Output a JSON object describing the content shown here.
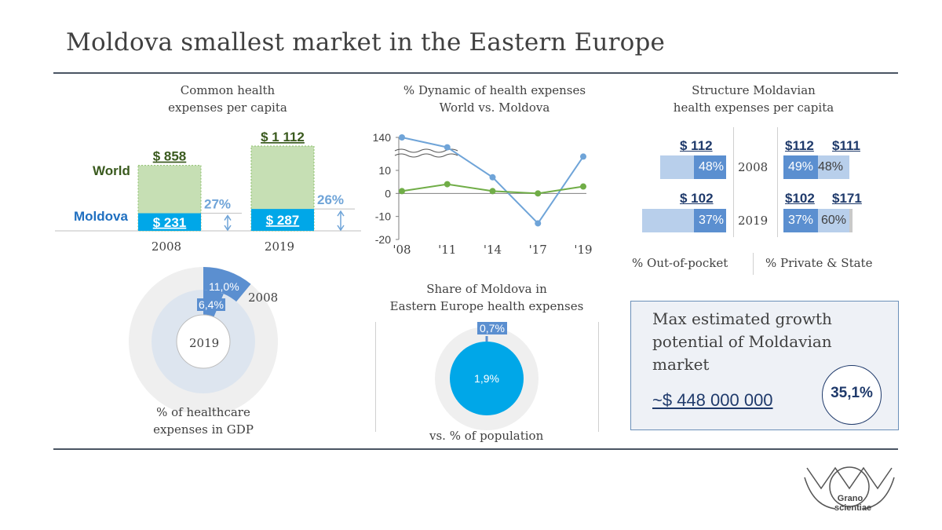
{
  "page": {
    "title": "Moldova smallest market in the Eastern Europe"
  },
  "colors": {
    "world_green": "#c6dfb4",
    "moldova_blue": "#00a7e8",
    "dark_green": "#3a5a1e",
    "dark_blue_text": "#1f3a6b",
    "line_blue": "#6fa4d8",
    "line_green": "#70ad47",
    "gdp_blue": "#5b8fd0",
    "light_grey": "#efefef"
  },
  "per_capita": {
    "title_line1": "Common health",
    "title_line2": "expenses per capita",
    "world_label": "World",
    "moldova_label": "Moldova",
    "chart_data": {
      "type": "bar",
      "categories": [
        "2008",
        "2019"
      ],
      "series": [
        {
          "name": "World",
          "values": [
            858,
            1112
          ],
          "labels": [
            "$ 858",
            "$ 1 112"
          ]
        },
        {
          "name": "Moldova",
          "values": [
            231,
            287
          ],
          "labels": [
            "$ 231",
            "$ 287"
          ]
        }
      ],
      "share_labels": [
        "27%",
        "26%"
      ]
    }
  },
  "dynamic": {
    "title_line1": "% Dynamic of health expenses",
    "title_line2": "World vs. Moldova",
    "chart_data": {
      "type": "line",
      "x": [
        "'08",
        "'11",
        "'14",
        "'17",
        "'19"
      ],
      "yticks": [
        "140",
        "10",
        "0",
        "-10",
        "-20"
      ],
      "ylim": [
        -20,
        140
      ],
      "axis_break": true,
      "series": [
        {
          "values": [
            140,
            119,
            7,
            -13,
            16
          ]
        },
        {
          "values": [
            1,
            4,
            1,
            0,
            3
          ]
        }
      ]
    }
  },
  "structure": {
    "title_line1": "Structure Moldavian",
    "title_line2": "health expenses per capita",
    "rows": [
      {
        "year": "2008",
        "oop_value": "$ 112",
        "oop_pct": "48%",
        "oop_share": 0.48,
        "priv_value": "$112",
        "state_value": "$111",
        "priv_pct": "49%",
        "state_pct": "48%"
      },
      {
        "year": "2019",
        "oop_value": "$ 102",
        "oop_pct": "37%",
        "oop_share": 0.37,
        "priv_value": "$102",
        "state_value": "$171",
        "priv_pct": "37%",
        "state_pct": "60%"
      }
    ],
    "legend_oop": "% Out-of-pocket",
    "legend_ps": "% Private & State"
  },
  "gdp": {
    "chart_data": {
      "type": "pie",
      "series": [
        {
          "name": "2008",
          "value": 11.0,
          "label": "11,0%"
        },
        {
          "name": "2019",
          "value": 6.4,
          "label": "6,4%"
        }
      ]
    },
    "label_2008": "2008",
    "label_2019": "2019",
    "caption_line1": "% of healthcare",
    "caption_line2": "expenses in GDP"
  },
  "share": {
    "title_line1": "Share of Moldova in",
    "title_line2": "Eastern Europe health expenses",
    "chart_data": {
      "type": "pie",
      "series": [
        {
          "name": "expenses",
          "value": 0.7,
          "label": "0,7%"
        },
        {
          "name": "population",
          "value": 1.9,
          "label": "1,9%"
        }
      ]
    },
    "caption": "vs. % of population"
  },
  "potential": {
    "text_line1": "Max estimated growth",
    "text_line2": "potential of Moldavian",
    "text_line3": "market",
    "value": "~$ 448 000 000",
    "percent": "35,1%"
  },
  "logo": {
    "text_line1": "Grano",
    "text_line2": "scientiae"
  }
}
